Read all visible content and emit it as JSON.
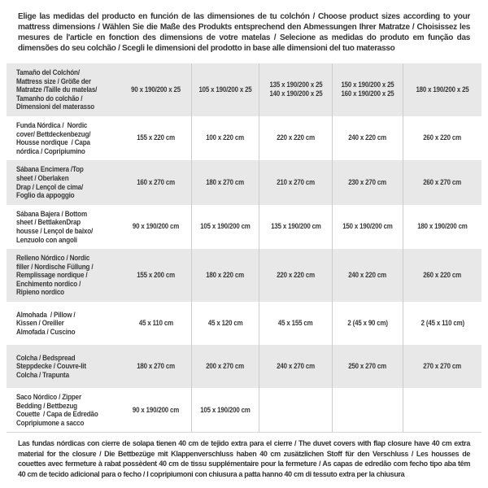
{
  "header": {
    "text": "Elige las medidas del producto en función de las dimensiones de tu colchón / Choose product sizes according to your mattress dimensions / Wählen Sie die Maße des Produkts entsprechend den Abmessungen Ihrer Matratze / Choisissez les mesures de l'article en fonction des dimensions de votre matelas / Selecione as medidas do produto em função das dimensões do seu colchão / Scegli le dimensioni del prodotto in base alle dimensioni del tuo materasso"
  },
  "table": {
    "rows": [
      {
        "label": "Tamaño del Colchón/\nMattress size / Größe der\nMatratze /Taille du matelas/\nTamanho do colchão /\nDimensioni del materasso",
        "values": [
          "90 x 190/200 x 25",
          "105 x 190/200 x 25",
          "135 x 190/200 x 25\n140 x 190/200 x 25",
          "150 x 190/200 x 25\n160 x 190/200 x 25",
          "180 x 190/200 x 25"
        ]
      },
      {
        "label": "Funda Nórdica /  Nordic\ncover/ Bettdeckenbezug/\nHousse nordique  / Capa\nnórdica / Copripiumino",
        "values": [
          "155 x 220 cm",
          "100 x 220 cm",
          "220 x 220 cm",
          "240 x 220 cm",
          "260 x 220 cm"
        ]
      },
      {
        "label": "Sábana Encimera /Top\nsheet / Oberlaken\nDrap / Lençol de cima/\nFoglio da appoggio",
        "values": [
          "160 x 270 cm",
          "180 x 270 cm",
          "210 x 270 cm",
          "230 x 270 cm",
          "260 x 270 cm"
        ]
      },
      {
        "label": "Sábana Bajera / Bottom\nsheet / BettlakenDrap\nhousse / Lençol de baixo/\nLenzuolo con angoli",
        "values": [
          "90 x 190/200 cm",
          "105 x 190/200 cm",
          "135 x 190/200 cm",
          "150 x 190/200 cm",
          "180 x 190/200 cm"
        ]
      },
      {
        "label": "Relleno Nórdico / Nordic\nfiller / Nordische Füllung /\nRemplissage nordique /\nEnchimento nordico /\nRipieno nordico",
        "values": [
          "155 x 200 cm",
          "180 x 220 cm",
          "220 x 220 cm",
          "240 x 220 cm",
          "260 x 220 cm"
        ]
      },
      {
        "label": "Almohada  / Pillow /\nKissen / Oreiller\nAlmofada / Cuscino",
        "values": [
          "45 x 110 cm",
          "45 x 120 cm",
          "45 x 155 cm",
          "2 (45 x 90 cm)",
          "2 (45 x 110 cm)"
        ]
      },
      {
        "label": "Colcha / Bedspread\nSteppdecke / Couvre-lit\nColcha / Trapunta",
        "values": [
          "180 x 270 cm",
          "200 x 270 cm",
          "240 x 270 cm",
          "250 x 270 cm",
          "270 x 270 cm"
        ]
      },
      {
        "label": "Saco Nórdico / Zipper\nBedding / Bettbezug\nCouette  / Capa de Edredão\nCopripiumone a sacco",
        "values": [
          "90 x 190/200 cm",
          "105 x 190/200 cm",
          "",
          "",
          ""
        ]
      }
    ]
  },
  "footer": {
    "text": "Las fundas nórdicas con cierre de solapa tienen 40 cm de tejido extra para el cierre  /  The duvet covers with flap closure have 40 cm extra material for the closure / Die Bettbezüge mit Klappenverschluss haben 40 cm zusätzlichen Stoff für den Verschluss / Les housses de couettes avec fermeture à rabat possèdent 40 cm de tissu supplémentaire pour la fermeture / As capas de edredão com fecho tipo aba têm 40 cm de tecido adicional para o fecho / I copripiumoni con chiusura a patta hanno 40 cm di tessuto extra per la chiusura"
  },
  "colors": {
    "row_shade": "#e8e8e8",
    "row_plain": "#ffffff",
    "separator": "#cccccc",
    "text": "#383838"
  }
}
